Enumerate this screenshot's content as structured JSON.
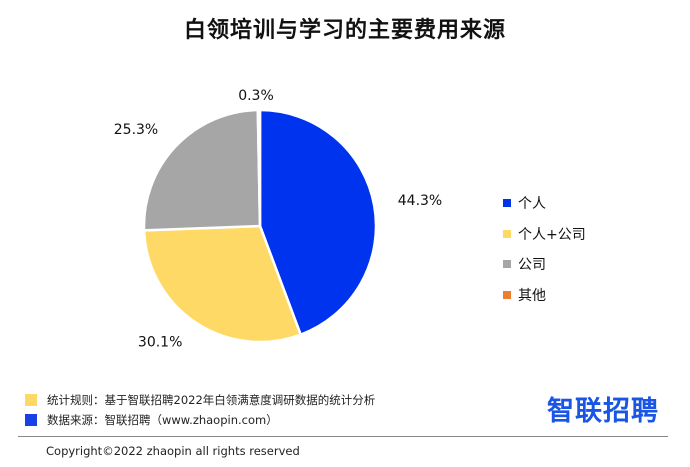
{
  "chart_data": {
    "type": "pie",
    "title": "白领培训与学习的主要费用来源",
    "slices": [
      {
        "name": "个人",
        "value": 44.3,
        "label": "44.3%",
        "color": "#0033ee"
      },
      {
        "name": "个人+公司",
        "value": 30.1,
        "label": "30.1%",
        "color": "#ffd966"
      },
      {
        "name": "公司",
        "value": 25.3,
        "label": "25.3%",
        "color": "#a6a6a6"
      },
      {
        "name": "其他",
        "value": 0.3,
        "label": "0.3%",
        "color": "#ed7d31"
      }
    ],
    "legend_position": "right"
  },
  "notes": {
    "rule_text": "统计规则：基于智联招聘2022年白领满意度调研数据的统计分析",
    "rule_color": "#ffd966",
    "source_text": "数据来源：智联招聘（www.zhaopin.com）",
    "source_color": "#1a3ee8"
  },
  "brand": {
    "logo_text": "智联招聘",
    "color": "#1a56e6"
  },
  "footer": {
    "copyright": "Copyright©2022 zhaopin all rights reserved"
  }
}
